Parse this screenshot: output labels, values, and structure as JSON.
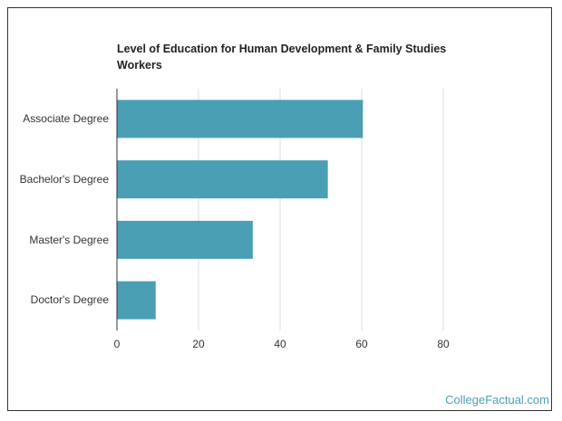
{
  "chart_data": {
    "type": "bar",
    "orientation": "horizontal",
    "title": "Level of Education for Human Development & Family Studies Workers",
    "categories": [
      "Associate Degree",
      "Bachelor's Degree",
      "Master's Degree",
      "Doctor's Degree"
    ],
    "values": [
      60.3,
      51.7,
      33.3,
      9.5
    ],
    "xlim": [
      0,
      80
    ],
    "xticks": [
      "0",
      "20",
      "40",
      "60",
      "80"
    ],
    "xlabel": "",
    "ylabel": "",
    "grid": true,
    "bar_color": "#4a9fb5"
  },
  "footer": {
    "brand": "CollegeFactual.com"
  }
}
